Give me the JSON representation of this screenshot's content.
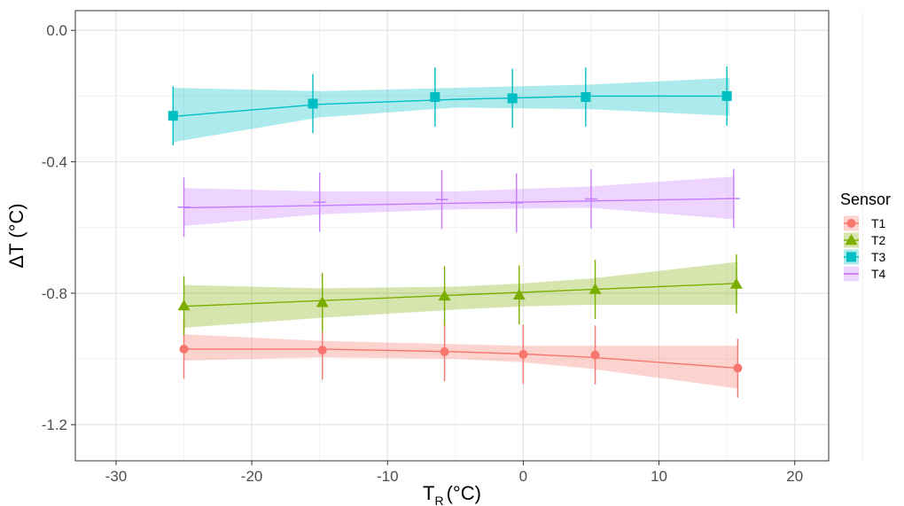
{
  "chart_data": {
    "type": "line",
    "xlabel": "T",
    "xlabel_subscript": "R",
    "xlabel_unit": "(°C)",
    "ylabel": "ΔT (°C)",
    "xlim": [
      -33,
      22.5
    ],
    "ylim": [
      -1.31,
      0.06
    ],
    "x_ticks": [
      -30,
      -20,
      -10,
      0,
      10,
      20
    ],
    "x_tick_labels": [
      "-30",
      "-20",
      "-10",
      "0",
      "10",
      "20"
    ],
    "y_ticks": [
      0.0,
      -0.4,
      -0.8,
      -1.2
    ],
    "y_tick_labels": [
      "0.0",
      "-0.4",
      "-0.8",
      "-1.2"
    ],
    "grid": true,
    "legend": {
      "title": "Sensor",
      "position": "right",
      "entries": [
        "T1",
        "T2",
        "T3",
        "T4"
      ]
    },
    "series": [
      {
        "name": "T1",
        "color": "#F8766D",
        "shape": "circle",
        "points": [
          {
            "x": -25.0,
            "y": -0.97,
            "lo": -1.06,
            "hi": -0.88
          },
          {
            "x": -14.8,
            "y": -0.973,
            "lo": -1.063,
            "hi": -0.883
          },
          {
            "x": -5.8,
            "y": -0.978,
            "lo": -1.068,
            "hi": -0.888
          },
          {
            "x": 0.0,
            "y": -0.986,
            "lo": -1.076,
            "hi": -0.896
          },
          {
            "x": 5.3,
            "y": -0.988,
            "lo": -1.078,
            "hi": -0.898
          },
          {
            "x": 15.8,
            "y": -1.028,
            "lo": -1.118,
            "hi": -0.938
          }
        ],
        "fit": [
          {
            "x": -25.0,
            "y": -0.97
          },
          {
            "x": -15.0,
            "y": -0.97
          },
          {
            "x": -5.0,
            "y": -0.978
          },
          {
            "x": 0.0,
            "y": -0.985
          },
          {
            "x": 5.0,
            "y": -0.995
          },
          {
            "x": 15.8,
            "y": -1.028
          }
        ],
        "band": [
          {
            "x": -25.0,
            "lo": -1.005,
            "hi": -0.925
          },
          {
            "x": -15.0,
            "lo": -0.995,
            "hi": -0.945
          },
          {
            "x": -5.0,
            "lo": -1.0,
            "hi": -0.955
          },
          {
            "x": 0.0,
            "lo": -1.01,
            "hi": -0.96
          },
          {
            "x": 5.0,
            "lo": -1.03,
            "hi": -0.96
          },
          {
            "x": 15.8,
            "lo": -1.09,
            "hi": -0.96
          }
        ]
      },
      {
        "name": "T2",
        "color": "#7CAE00",
        "shape": "triangle",
        "points": [
          {
            "x": -25.0,
            "y": -0.838,
            "lo": -0.928,
            "hi": -0.748
          },
          {
            "x": -14.8,
            "y": -0.828,
            "lo": -0.918,
            "hi": -0.738
          },
          {
            "x": -5.8,
            "y": -0.808,
            "lo": -0.898,
            "hi": -0.718
          },
          {
            "x": -0.3,
            "y": -0.805,
            "lo": -0.895,
            "hi": -0.715
          },
          {
            "x": 5.3,
            "y": -0.788,
            "lo": -0.878,
            "hi": -0.698
          },
          {
            "x": 15.7,
            "y": -0.772,
            "lo": -0.862,
            "hi": -0.682
          }
        ],
        "fit": [
          {
            "x": -25.0,
            "y": -0.84
          },
          {
            "x": 15.8,
            "y": -0.77
          }
        ],
        "band": [
          {
            "x": -25.0,
            "lo": -0.905,
            "hi": -0.775
          },
          {
            "x": -15.0,
            "lo": -0.875,
            "hi": -0.785
          },
          {
            "x": -5.0,
            "lo": -0.85,
            "hi": -0.78
          },
          {
            "x": 0.0,
            "lo": -0.84,
            "hi": -0.77
          },
          {
            "x": 5.0,
            "lo": -0.835,
            "hi": -0.755
          },
          {
            "x": 15.8,
            "lo": -0.835,
            "hi": -0.705
          }
        ]
      },
      {
        "name": "T3",
        "color": "#00BFC4",
        "shape": "square",
        "points": [
          {
            "x": -25.8,
            "y": -0.26,
            "lo": -0.35,
            "hi": -0.17
          },
          {
            "x": -15.5,
            "y": -0.223,
            "lo": -0.313,
            "hi": -0.133
          },
          {
            "x": -6.5,
            "y": -0.203,
            "lo": -0.293,
            "hi": -0.113
          },
          {
            "x": -0.8,
            "y": -0.207,
            "lo": -0.297,
            "hi": -0.117
          },
          {
            "x": 4.6,
            "y": -0.203,
            "lo": -0.293,
            "hi": -0.113
          },
          {
            "x": 15.0,
            "y": -0.2,
            "lo": -0.29,
            "hi": -0.11
          }
        ],
        "fit": [
          {
            "x": -25.8,
            "y": -0.262
          },
          {
            "x": -15.0,
            "y": -0.225
          },
          {
            "x": -5.0,
            "y": -0.21
          },
          {
            "x": 5.0,
            "y": -0.2
          },
          {
            "x": 15.2,
            "y": -0.2
          }
        ],
        "band": [
          {
            "x": -25.8,
            "lo": -0.34,
            "hi": -0.175
          },
          {
            "x": -15.0,
            "lo": -0.265,
            "hi": -0.185
          },
          {
            "x": -5.0,
            "lo": -0.235,
            "hi": -0.175
          },
          {
            "x": 5.0,
            "lo": -0.24,
            "hi": -0.165
          },
          {
            "x": 15.2,
            "lo": -0.26,
            "hi": -0.145
          }
        ]
      },
      {
        "name": "T4",
        "color": "#C77CFF",
        "shape": "cross",
        "points": [
          {
            "x": -25.0,
            "y": -0.538,
            "lo": -0.628,
            "hi": -0.448
          },
          {
            "x": -15.0,
            "y": -0.523,
            "lo": -0.613,
            "hi": -0.433
          },
          {
            "x": -6.0,
            "y": -0.515,
            "lo": -0.605,
            "hi": -0.425
          },
          {
            "x": -0.5,
            "y": -0.525,
            "lo": -0.615,
            "hi": -0.435
          },
          {
            "x": 5.0,
            "y": -0.513,
            "lo": -0.603,
            "hi": -0.423
          },
          {
            "x": 15.5,
            "y": -0.512,
            "lo": -0.602,
            "hi": -0.422
          }
        ],
        "fit": [
          {
            "x": -25.0,
            "y": -0.54
          },
          {
            "x": 15.5,
            "y": -0.512
          }
        ],
        "band": [
          {
            "x": -25.0,
            "lo": -0.595,
            "hi": -0.48
          },
          {
            "x": -15.0,
            "lo": -0.56,
            "hi": -0.49
          },
          {
            "x": -5.0,
            "lo": -0.545,
            "hi": -0.49
          },
          {
            "x": 5.0,
            "lo": -0.54,
            "hi": -0.475
          },
          {
            "x": 15.5,
            "lo": -0.575,
            "hi": -0.445
          }
        ]
      }
    ]
  }
}
